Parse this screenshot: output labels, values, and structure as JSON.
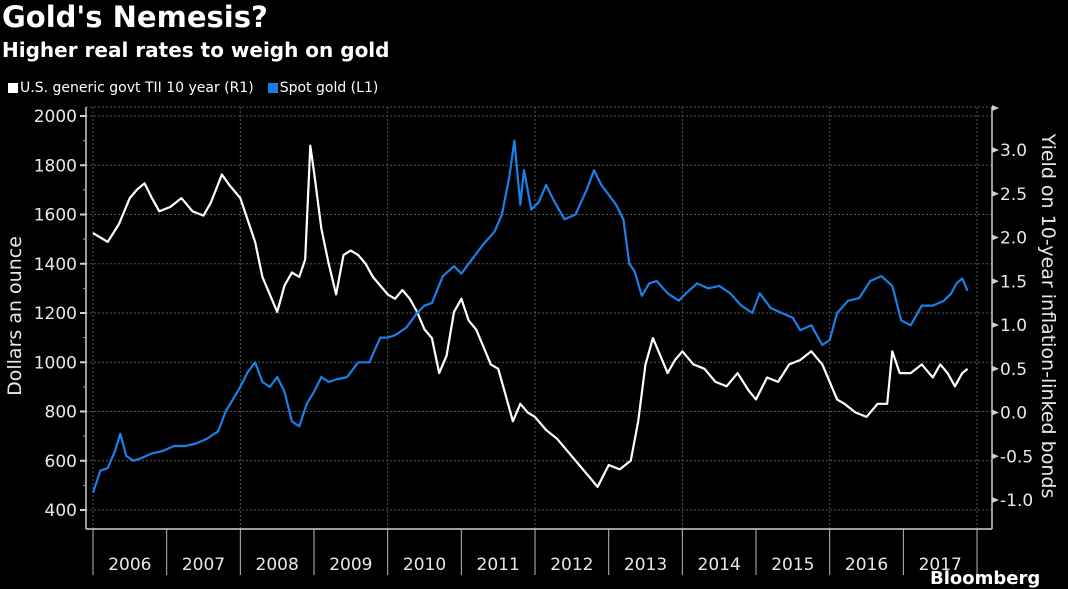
{
  "header": {
    "title": "Gold's Nemesis?",
    "subtitle": "Higher real rates to weigh on gold"
  },
  "legend": [
    {
      "label": "U.S. generic govt TII 10 year (R1)",
      "color": "#ffffff"
    },
    {
      "label": "Spot gold (L1)",
      "color": "#1a7fe6"
    }
  ],
  "footer": {
    "source": "Bloomberg"
  },
  "chart_data": {
    "type": "line",
    "title": "Gold's Nemesis?",
    "subtitle": "Higher real rates to weigh on gold",
    "xlabel": "",
    "ylabel_left": "Dollars an ounce",
    "ylabel_right": "Yield on 10-year inflation-linked bonds",
    "x_tick_labels": [
      "2006",
      "2007",
      "2008",
      "2009",
      "2010",
      "2011",
      "2012",
      "2013",
      "2014",
      "2015",
      "2016",
      "2017"
    ],
    "xlim": [
      2006.0,
      2018.1
    ],
    "ylim_left": [
      323,
      2036
    ],
    "yticks_left": [
      400,
      600,
      800,
      1000,
      1200,
      1400,
      1600,
      1800,
      2000
    ],
    "ylim_right": [
      -1.34,
      3.48
    ],
    "yticks_right": [
      -1.0,
      -0.5,
      0.0,
      0.5,
      1.0,
      1.5,
      2.0,
      2.5,
      3.0
    ],
    "grid": true,
    "legend_position": "top-left",
    "series": [
      {
        "name": "U.S. generic govt TII 10 year (R1)",
        "axis": "right",
        "color": "#ffffff",
        "x": [
          2006.0,
          2006.1,
          2006.2,
          2006.35,
          2006.5,
          2006.6,
          2006.7,
          2006.8,
          2006.9,
          2007.05,
          2007.2,
          2007.35,
          2007.5,
          2007.6,
          2007.75,
          2007.85,
          2008.0,
          2008.1,
          2008.2,
          2008.3,
          2008.4,
          2008.5,
          2008.6,
          2008.7,
          2008.8,
          2008.88,
          2008.95,
          2009.0,
          2009.1,
          2009.2,
          2009.3,
          2009.4,
          2009.5,
          2009.6,
          2009.7,
          2009.8,
          2009.9,
          2010.0,
          2010.1,
          2010.2,
          2010.3,
          2010.4,
          2010.5,
          2010.6,
          2010.7,
          2010.8,
          2010.9,
          2011.0,
          2011.1,
          2011.2,
          2011.3,
          2011.4,
          2011.5,
          2011.6,
          2011.7,
          2011.8,
          2011.9,
          2012.0,
          2012.15,
          2012.3,
          2012.45,
          2012.6,
          2012.75,
          2012.85,
          2013.0,
          2013.15,
          2013.3,
          2013.4,
          2013.5,
          2013.6,
          2013.7,
          2013.8,
          2013.9,
          2014.0,
          2014.15,
          2014.3,
          2014.45,
          2014.6,
          2014.75,
          2014.9,
          2015.0,
          2015.15,
          2015.3,
          2015.45,
          2015.6,
          2015.75,
          2015.9,
          2016.0,
          2016.1,
          2016.2,
          2016.35,
          2016.5,
          2016.65,
          2016.78,
          2016.85,
          2016.95,
          2017.1,
          2017.25,
          2017.4,
          2017.5,
          2017.6,
          2017.7,
          2017.8,
          2017.87
        ],
        "y": [
          2.05,
          2.0,
          1.95,
          2.15,
          2.45,
          2.55,
          2.62,
          2.45,
          2.3,
          2.35,
          2.45,
          2.3,
          2.25,
          2.4,
          2.72,
          2.6,
          2.45,
          2.2,
          1.95,
          1.55,
          1.35,
          1.15,
          1.45,
          1.6,
          1.55,
          1.75,
          3.05,
          2.75,
          2.1,
          1.7,
          1.35,
          1.8,
          1.85,
          1.8,
          1.7,
          1.55,
          1.45,
          1.35,
          1.3,
          1.4,
          1.3,
          1.15,
          0.95,
          0.85,
          0.45,
          0.65,
          1.15,
          1.3,
          1.05,
          0.95,
          0.75,
          0.55,
          0.5,
          0.2,
          -0.1,
          0.1,
          0.0,
          -0.05,
          -0.2,
          -0.3,
          -0.45,
          -0.6,
          -0.75,
          -0.85,
          -0.6,
          -0.65,
          -0.55,
          -0.1,
          0.55,
          0.85,
          0.65,
          0.45,
          0.6,
          0.7,
          0.55,
          0.5,
          0.35,
          0.3,
          0.45,
          0.25,
          0.15,
          0.4,
          0.35,
          0.55,
          0.6,
          0.7,
          0.55,
          0.35,
          0.15,
          0.1,
          0.0,
          -0.05,
          0.1,
          0.1,
          0.7,
          0.45,
          0.45,
          0.55,
          0.4,
          0.55,
          0.45,
          0.3,
          0.45,
          0.5
        ]
      },
      {
        "name": "Spot gold (L1)",
        "axis": "left",
        "color": "#1a7fe6",
        "x": [
          2006.0,
          2006.1,
          2006.2,
          2006.3,
          2006.37,
          2006.45,
          2006.55,
          2006.65,
          2006.8,
          2006.95,
          2007.1,
          2007.25,
          2007.4,
          2007.55,
          2007.7,
          2007.8,
          2007.9,
          2008.0,
          2008.1,
          2008.2,
          2008.3,
          2008.4,
          2008.5,
          2008.6,
          2008.7,
          2008.8,
          2008.9,
          2009.0,
          2009.1,
          2009.2,
          2009.3,
          2009.45,
          2009.6,
          2009.75,
          2009.9,
          2010.0,
          2010.1,
          2010.25,
          2010.4,
          2010.5,
          2010.6,
          2010.75,
          2010.9,
          2011.0,
          2011.15,
          2011.3,
          2011.45,
          2011.55,
          2011.65,
          2011.72,
          2011.8,
          2011.85,
          2011.95,
          2012.05,
          2012.15,
          2012.25,
          2012.4,
          2012.55,
          2012.7,
          2012.8,
          2012.9,
          2013.0,
          2013.1,
          2013.2,
          2013.28,
          2013.35,
          2013.45,
          2013.55,
          2013.65,
          2013.8,
          2013.95,
          2014.05,
          2014.2,
          2014.35,
          2014.5,
          2014.65,
          2014.8,
          2014.95,
          2015.05,
          2015.2,
          2015.35,
          2015.5,
          2015.6,
          2015.75,
          2015.9,
          2016.0,
          2016.1,
          2016.25,
          2016.4,
          2016.55,
          2016.7,
          2016.85,
          2016.97,
          2017.1,
          2017.25,
          2017.4,
          2017.55,
          2017.65,
          2017.72,
          2017.8,
          2017.87
        ],
        "y": [
          470,
          560,
          570,
          640,
          710,
          620,
          600,
          610,
          630,
          640,
          660,
          660,
          670,
          690,
          720,
          800,
          850,
          900,
          960,
          1000,
          920,
          900,
          940,
          880,
          760,
          740,
          830,
          880,
          940,
          920,
          930,
          940,
          1000,
          1000,
          1100,
          1100,
          1110,
          1140,
          1200,
          1230,
          1240,
          1350,
          1390,
          1360,
          1420,
          1480,
          1530,
          1600,
          1750,
          1900,
          1640,
          1780,
          1620,
          1650,
          1720,
          1660,
          1580,
          1600,
          1700,
          1780,
          1720,
          1680,
          1640,
          1580,
          1400,
          1370,
          1270,
          1320,
          1330,
          1280,
          1250,
          1280,
          1320,
          1300,
          1310,
          1280,
          1230,
          1200,
          1280,
          1220,
          1200,
          1180,
          1130,
          1150,
          1070,
          1090,
          1200,
          1250,
          1260,
          1330,
          1350,
          1310,
          1170,
          1150,
          1230,
          1230,
          1250,
          1280,
          1320,
          1340,
          1290
        ]
      }
    ]
  }
}
